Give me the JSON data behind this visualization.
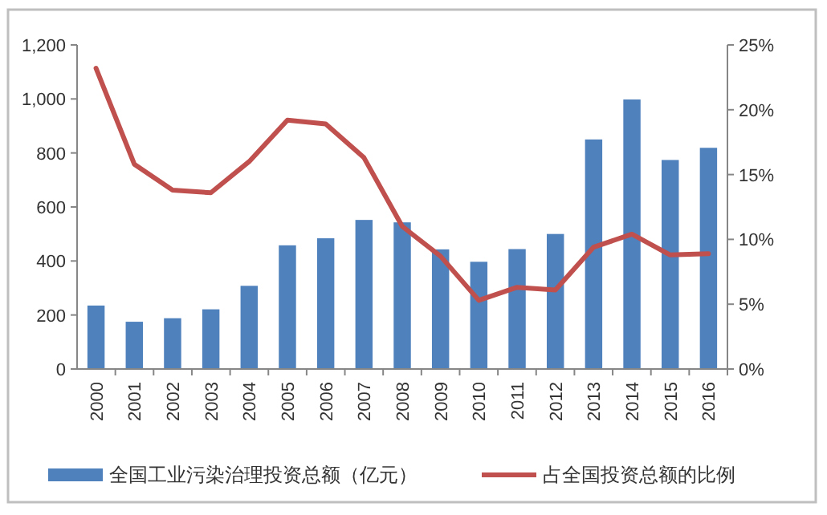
{
  "chart_data": {
    "type": "bar",
    "categories": [
      "2000",
      "2001",
      "2002",
      "2003",
      "2004",
      "2005",
      "2006",
      "2007",
      "2008",
      "2009",
      "2010",
      "2011",
      "2012",
      "2013",
      "2014",
      "2015",
      "2016"
    ],
    "series": [
      {
        "name": "全国工业污染治理投资总额（亿元）",
        "color": "#4f81bd",
        "values": [
          235,
          175,
          188,
          221,
          308,
          458,
          484,
          552,
          543,
          443,
          397,
          444,
          500,
          850,
          998,
          774,
          819
        ]
      },
      {
        "name": "占全国投资总额的比例",
        "type": "line",
        "axis": "y2",
        "color": "#c0504d",
        "values": [
          23.2,
          15.8,
          13.8,
          13.6,
          16.0,
          19.2,
          18.9,
          16.3,
          11.0,
          8.7,
          5.3,
          6.3,
          6.1,
          9.4,
          10.4,
          8.8,
          8.9
        ]
      }
    ],
    "ylim": [
      0,
      1200
    ],
    "yticks": [
      {
        "value": 0,
        "label": "0"
      },
      {
        "value": 200,
        "label": "200"
      },
      {
        "value": 400,
        "label": "400"
      },
      {
        "value": 600,
        "label": "600"
      },
      {
        "value": 800,
        "label": "800"
      },
      {
        "value": 1000,
        "label": "1,000"
      },
      {
        "value": 1200,
        "label": "1,200"
      }
    ],
    "y2lim": [
      0,
      25
    ],
    "y2ticks": [
      {
        "value": 0,
        "label": "0%"
      },
      {
        "value": 5,
        "label": "5%"
      },
      {
        "value": 10,
        "label": "10%"
      },
      {
        "value": 15,
        "label": "15%"
      },
      {
        "value": 20,
        "label": "20%"
      },
      {
        "value": 25,
        "label": "25%"
      }
    ],
    "grid": false,
    "legend": "bottom",
    "marker": "none",
    "line_style": "solid"
  }
}
